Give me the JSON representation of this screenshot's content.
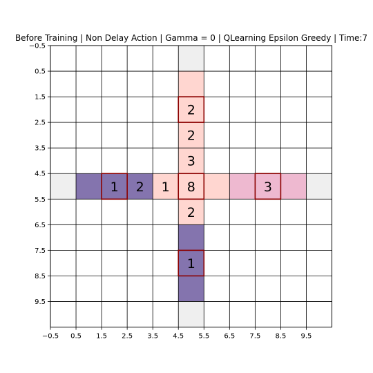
{
  "chart_data": {
    "type": "heatmap",
    "title": "Before Training | Non Delay Action | Gamma = 0 | QLearning Epsilon Greedy | Time:7",
    "xlabel": "",
    "ylabel": "",
    "xlim": [
      -0.5,
      10.5
    ],
    "ylim": [
      10.5,
      -0.5
    ],
    "x_ticks": [
      "-0.5",
      "0.5",
      "1.5",
      "2.5",
      "3.5",
      "4.5",
      "5.5",
      "6.5",
      "7.5",
      "8.5",
      "9.5"
    ],
    "y_ticks": [
      "-0.5",
      "0.5",
      "1.5",
      "2.5",
      "3.5",
      "4.5",
      "5.5",
      "6.5",
      "7.5",
      "8.5",
      "9.5"
    ],
    "grid": true,
    "colors": {
      "road_end": "#efefef",
      "light_red": "#ffd6d0",
      "pink": "#eeb9d0",
      "purple": "#8474ae",
      "highlight_border": "#8b0000",
      "grid_line": "#000000"
    },
    "cells": [
      {
        "x": 5,
        "y": 0,
        "fill": "road_end"
      },
      {
        "x": 5,
        "y": 10,
        "fill": "road_end"
      },
      {
        "x": 0,
        "y": 5,
        "fill": "road_end"
      },
      {
        "x": 10,
        "y": 5,
        "fill": "road_end"
      },
      {
        "x": 5,
        "y": 1,
        "fill": "light_red"
      },
      {
        "x": 5,
        "y": 2,
        "fill": "light_red"
      },
      {
        "x": 5,
        "y": 3,
        "fill": "light_red"
      },
      {
        "x": 5,
        "y": 4,
        "fill": "light_red"
      },
      {
        "x": 5,
        "y": 5,
        "fill": "light_red"
      },
      {
        "x": 5,
        "y": 6,
        "fill": "light_red"
      },
      {
        "x": 4,
        "y": 5,
        "fill": "light_red"
      },
      {
        "x": 6,
        "y": 5,
        "fill": "light_red"
      },
      {
        "x": 1,
        "y": 5,
        "fill": "purple"
      },
      {
        "x": 2,
        "y": 5,
        "fill": "purple"
      },
      {
        "x": 3,
        "y": 5,
        "fill": "purple"
      },
      {
        "x": 5,
        "y": 7,
        "fill": "purple"
      },
      {
        "x": 5,
        "y": 8,
        "fill": "purple"
      },
      {
        "x": 5,
        "y": 9,
        "fill": "purple"
      },
      {
        "x": 7,
        "y": 5,
        "fill": "pink"
      },
      {
        "x": 8,
        "y": 5,
        "fill": "pink"
      },
      {
        "x": 9,
        "y": 5,
        "fill": "pink"
      }
    ],
    "labels": [
      {
        "x": 5,
        "y": 2,
        "text": "2"
      },
      {
        "x": 5,
        "y": 3,
        "text": "2"
      },
      {
        "x": 5,
        "y": 4,
        "text": "3"
      },
      {
        "x": 2,
        "y": 5,
        "text": "1"
      },
      {
        "x": 3,
        "y": 5,
        "text": "2"
      },
      {
        "x": 4,
        "y": 5,
        "text": "1"
      },
      {
        "x": 5,
        "y": 5,
        "text": "8"
      },
      {
        "x": 8,
        "y": 5,
        "text": "3"
      },
      {
        "x": 5,
        "y": 6,
        "text": "2"
      },
      {
        "x": 5,
        "y": 8,
        "text": "1"
      }
    ],
    "highlighted": [
      {
        "x": 5,
        "y": 2
      },
      {
        "x": 2,
        "y": 5
      },
      {
        "x": 5,
        "y": 5
      },
      {
        "x": 8,
        "y": 5
      },
      {
        "x": 5,
        "y": 8
      }
    ]
  }
}
